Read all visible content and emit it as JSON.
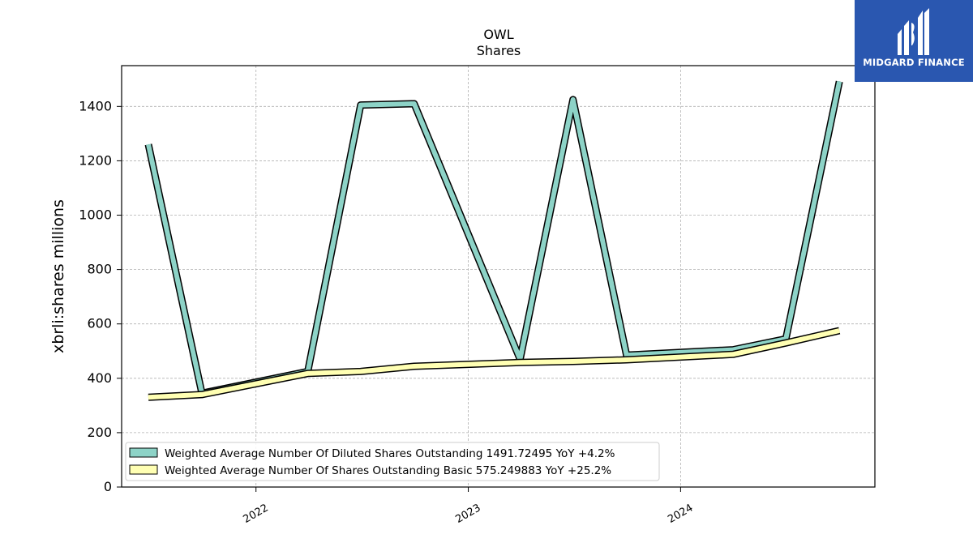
{
  "logo": {
    "text": "MIDGARD FINANCE",
    "icon": "midgard-logo-icon",
    "background": "#2a57b0"
  },
  "chart_data": {
    "type": "line",
    "title": "OWL",
    "subtitle": "Shares",
    "xlabel": "",
    "ylabel": "xbrli:shares millions",
    "xlim": [
      "2021-05-15",
      "2024-11-30"
    ],
    "ylim": [
      0,
      1550
    ],
    "yticks": [
      0,
      200,
      400,
      600,
      800,
      1000,
      1200,
      1400
    ],
    "xticks": [
      {
        "date": "2022-01-01",
        "label": "2022"
      },
      {
        "date": "2023-01-01",
        "label": "2023"
      },
      {
        "date": "2024-01-01",
        "label": "2024"
      }
    ],
    "grid": true,
    "legend_position": "lower-left",
    "series": [
      {
        "name": "Weighted Average Number Of Diluted Shares Outstanding",
        "legend": "Weighted Average Number Of Diluted Shares Outstanding  1491.72495 YoY +4.2%",
        "color": "#8dd3c7",
        "points": [
          {
            "x": "2021-06-30",
            "y": 1260
          },
          {
            "x": "2021-09-30",
            "y": 345
          },
          {
            "x": "2022-03-31",
            "y": 425
          },
          {
            "x": "2022-06-30",
            "y": 1405
          },
          {
            "x": "2022-09-30",
            "y": 1410
          },
          {
            "x": "2023-03-31",
            "y": 470
          },
          {
            "x": "2023-06-30",
            "y": 1425
          },
          {
            "x": "2023-09-30",
            "y": 485
          },
          {
            "x": "2024-03-31",
            "y": 505
          },
          {
            "x": "2024-06-30",
            "y": 545
          },
          {
            "x": "2024-09-30",
            "y": 1491.72
          }
        ]
      },
      {
        "name": "Weighted Average Number Of Shares Outstanding Basic",
        "legend": "Weighted Average Number Of Shares Outstanding Basic  575.249883 YoY +25.2%",
        "color": "#ffffb3",
        "points": [
          {
            "x": "2021-06-30",
            "y": 330
          },
          {
            "x": "2021-09-30",
            "y": 340
          },
          {
            "x": "2022-03-31",
            "y": 418
          },
          {
            "x": "2022-06-30",
            "y": 425
          },
          {
            "x": "2022-09-30",
            "y": 444
          },
          {
            "x": "2023-03-31",
            "y": 458
          },
          {
            "x": "2023-06-30",
            "y": 462
          },
          {
            "x": "2023-09-30",
            "y": 468
          },
          {
            "x": "2024-03-31",
            "y": 488
          },
          {
            "x": "2024-06-30",
            "y": 530
          },
          {
            "x": "2024-09-30",
            "y": 575.25
          }
        ]
      }
    ]
  }
}
